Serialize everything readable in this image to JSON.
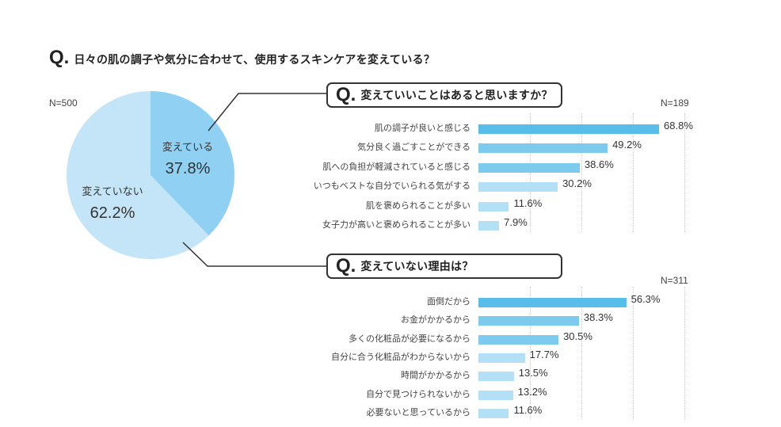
{
  "main_question": {
    "q": "Q.",
    "text": "日々の肌の調子や気分に合わせて、使用するスキンケアを変えている？"
  },
  "pie": {
    "n": "N=500",
    "colors": {
      "changing": "#8fd0f3",
      "not_changing": "#c4e5f8"
    },
    "slices": [
      {
        "label": "変えている",
        "value_text": "37.8%"
      },
      {
        "label": "変えていない",
        "value_text": "62.2%"
      }
    ]
  },
  "sub_q1": {
    "q": "Q.",
    "text": "変えていいことはあると思いますか？",
    "n": "N=189"
  },
  "sub_q2": {
    "q": "Q.",
    "text": "変えていない理由は？",
    "n": "N=311"
  },
  "colors": {
    "bar_top": "#59bdea",
    "bar_mid": "#7ccbef",
    "bar_low": "#b4e0f6",
    "line": "#333333"
  },
  "chart_data": [
    {
      "type": "pie",
      "title": "日々の肌の調子や気分に合わせて、使用するスキンケアを変えている？",
      "categories": [
        "変えている",
        "変えていない"
      ],
      "values": [
        37.8,
        62.2
      ]
    },
    {
      "type": "bar",
      "title": "変えていいことはあると思いますか？",
      "categories": [
        "肌の調子が良いと感じる",
        "気分良く過ごすことができる",
        "肌への負担が軽減されていると感じる",
        "いつもベストな自分でいられる気がする",
        "肌を褒められることが多い",
        "女子力が高いと褒められることが多い"
      ],
      "values": [
        68.8,
        49.2,
        38.6,
        30.2,
        11.6,
        7.9
      ],
      "labels": [
        "68.8%",
        "49.2%",
        "38.6%",
        "30.2%",
        "11.6%",
        "7.9%"
      ],
      "xlim": [
        0,
        80
      ]
    },
    {
      "type": "bar",
      "title": "変えていない理由は？",
      "categories": [
        "面倒だから",
        "お金がかかるから",
        "多くの化粧品が必要になるから",
        "自分に合う化粧品がわからないから",
        "時間がかかるから",
        "自分で見つけられないから",
        "必要ないと思っているから"
      ],
      "values": [
        56.3,
        38.3,
        30.5,
        17.7,
        13.5,
        13.2,
        11.6
      ],
      "labels": [
        "56.3%",
        "38.3%",
        "30.5%",
        "17.7%",
        "13.5%",
        "13.2%",
        "11.6%"
      ],
      "xlim": [
        0,
        80
      ]
    }
  ]
}
